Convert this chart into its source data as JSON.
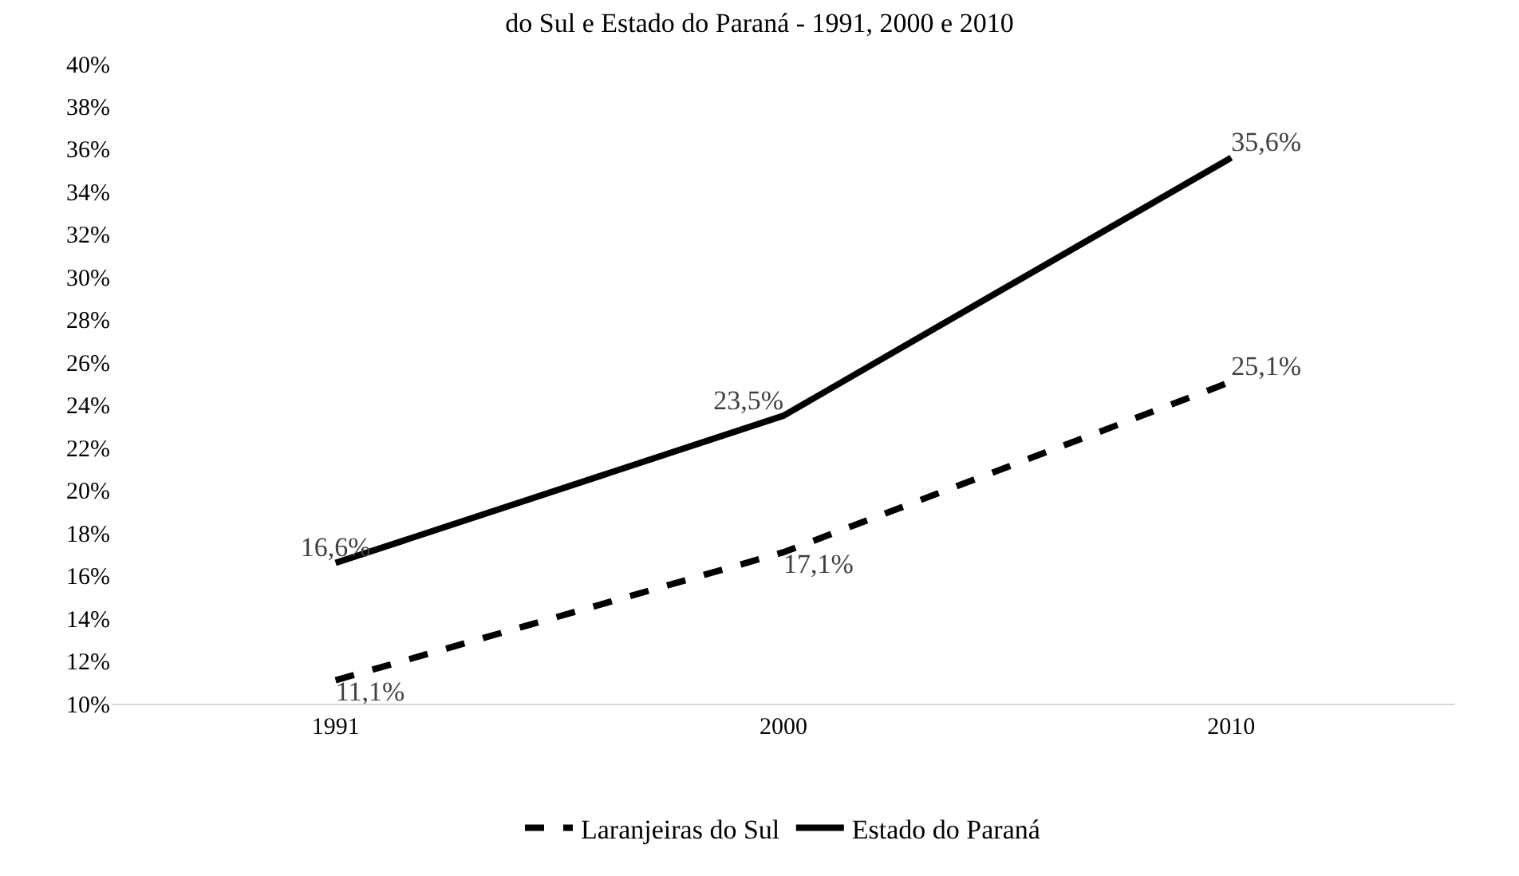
{
  "chart_data": {
    "type": "line",
    "title": "do Sul e Estado do Paraná - 1991, 2000 e 2010",
    "categories": [
      "1991",
      "2000",
      "2010"
    ],
    "series": [
      {
        "name": "Laranjeiras do Sul",
        "color": "#000000",
        "line_style": "dashed",
        "values": [
          11.1,
          17.1,
          25.1
        ],
        "value_labels": [
          "11,1%",
          "17,1%",
          "25,1%"
        ]
      },
      {
        "name": "Estado do Paraná",
        "color": "#000000",
        "line_style": "solid",
        "values": [
          16.6,
          23.5,
          35.6
        ],
        "value_labels": [
          "16,6%",
          "23,5%",
          "35,6%"
        ]
      }
    ],
    "ylim": [
      10,
      40
    ],
    "yticks": [
      {
        "value": 10,
        "label": "10%"
      },
      {
        "value": 12,
        "label": "12%"
      },
      {
        "value": 14,
        "label": "14%"
      },
      {
        "value": 16,
        "label": "16%"
      },
      {
        "value": 18,
        "label": "18%"
      },
      {
        "value": 20,
        "label": "20%"
      },
      {
        "value": 22,
        "label": "22%"
      },
      {
        "value": 24,
        "label": "24%"
      },
      {
        "value": 26,
        "label": "26%"
      },
      {
        "value": 28,
        "label": "28%"
      },
      {
        "value": 30,
        "label": "30%"
      },
      {
        "value": 32,
        "label": "32%"
      },
      {
        "value": 34,
        "label": "34%"
      },
      {
        "value": 36,
        "label": "36%"
      },
      {
        "value": 38,
        "label": "38%"
      },
      {
        "value": 40,
        "label": "40%"
      }
    ],
    "grid": false,
    "legend": "bottom",
    "marker": "none"
  }
}
